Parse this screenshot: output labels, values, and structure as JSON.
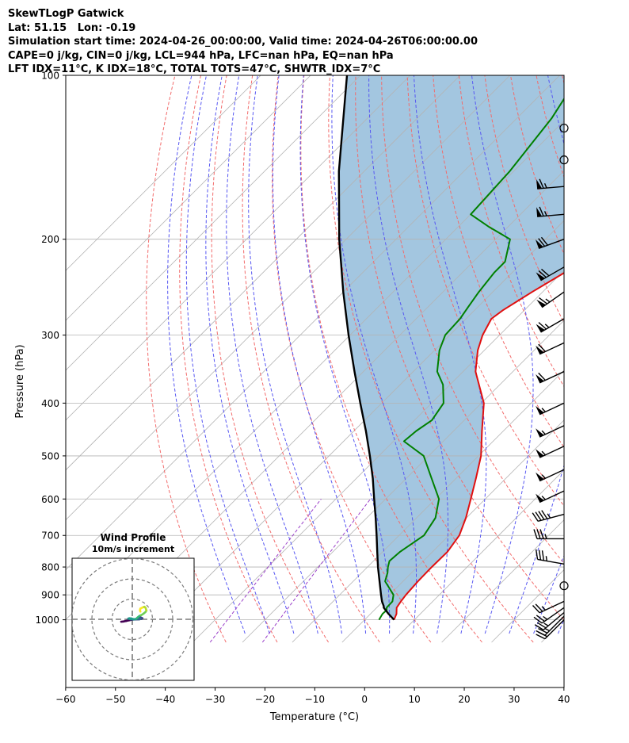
{
  "header": {
    "line1": "SkewTLogP Gatwick",
    "line2": "Lat: 51.15   Lon: -0.19",
    "line3": "Simulation start time: 2024-04-26_00:00:00, Valid time: 2024-04-26T06:00:00.00",
    "line4": "CAPE=0 j/kg, CIN=0 j/kg, LCL=944 hPa, LFC=nan hPa, EQ=nan hPa",
    "line5": "LFT IDX=11°C, K IDX=18°C, TOTAL TOTS=47°C, SHWTR_IDX=7°C"
  },
  "chart_data": {
    "type": "line",
    "xlabel": "Temperature (°C)",
    "ylabel": "Pressure (hPa)",
    "xlim": [
      -60,
      40
    ],
    "ylim": [
      1050,
      100
    ],
    "y_scale": "log",
    "x_ticks": [
      "−60",
      "−50",
      "−40",
      "−30",
      "−20",
      "−10",
      "0",
      "10",
      "20",
      "30",
      "40"
    ],
    "x_tick_values": [
      -60,
      -50,
      -40,
      -30,
      -20,
      -10,
      0,
      10,
      20,
      30,
      40
    ],
    "y_ticks": [
      "100",
      "200",
      "300",
      "400",
      "500",
      "600",
      "700",
      "800",
      "900",
      "1000"
    ],
    "y_tick_values": [
      100,
      200,
      300,
      400,
      500,
      600,
      700,
      800,
      900,
      1000
    ],
    "skew": 45,
    "grid": true,
    "colors": {
      "temperature": "#e01010",
      "dewpoint": "#008000",
      "parcel": "#000000",
      "fill": "#a3c6e0",
      "dry_adiabat": "#f26b6b",
      "moist_adiabat": "#5757f2",
      "mixing_ratio": "#9a3fc9",
      "isotherm": "#b3b3b3"
    },
    "series": [
      {
        "key": "temperature",
        "pressure": [
          1000,
          975,
          950,
          925,
          900,
          850,
          800,
          750,
          700,
          650,
          600,
          550,
          500,
          450,
          400,
          350,
          320,
          300,
          280,
          270,
          250,
          220,
          200,
          180,
          150,
          120,
          100
        ],
        "temperature": [
          5.9,
          5.2,
          4.0,
          3.6,
          3.3,
          3.0,
          2.9,
          3.0,
          2.1,
          -0.1,
          -2.9,
          -6.0,
          -9.5,
          -14.3,
          -19.5,
          -27.5,
          -31.3,
          -33.4,
          -34.9,
          -34.3,
          -32.1,
          -28.0,
          -25.8,
          -26.7,
          -29.4,
          -34.7,
          -38.4
        ]
      },
      {
        "key": "dewpoint",
        "pressure": [
          1000,
          990,
          975,
          960,
          950,
          925,
          900,
          870,
          850,
          820,
          800,
          780,
          750,
          700,
          650,
          600,
          550,
          500,
          470,
          450,
          430,
          400,
          370,
          350,
          320,
          300,
          280,
          265,
          250,
          230,
          220,
          200,
          190,
          180,
          150,
          120,
          100
        ],
        "temperature": [
          2.9,
          2.7,
          2.4,
          2.5,
          2.0,
          1.9,
          0.8,
          -1.8,
          -3.6,
          -4.8,
          -5.9,
          -6.8,
          -6.5,
          -5.0,
          -6.2,
          -9.3,
          -14.9,
          -21.0,
          -27.9,
          -27.5,
          -26.5,
          -27.6,
          -31.4,
          -35.2,
          -39.0,
          -40.9,
          -41.2,
          -42.0,
          -42.8,
          -43.6,
          -43.6,
          -47.1,
          -53.7,
          -60.0,
          -60.8,
          -63.0,
          -66.1
        ]
      },
      {
        "key": "parcel",
        "pressure": [
          1000,
          975,
          950,
          944,
          925,
          900,
          850,
          800,
          750,
          700,
          650,
          600,
          550,
          500,
          450,
          400,
          350,
          300,
          250,
          200,
          150,
          100
        ],
        "temperature": [
          5.9,
          3.6,
          1.4,
          1.1,
          -0.2,
          -1.7,
          -4.7,
          -7.9,
          -11.1,
          -14.5,
          -18.2,
          -22.3,
          -26.7,
          -31.8,
          -37.6,
          -44.3,
          -51.8,
          -60.3,
          -70.0,
          -81.4,
          -95.1,
          -112.7
        ]
      }
    ],
    "wind_barbs": [
      {
        "p": 125,
        "calm": true
      },
      {
        "p": 143,
        "calm": true
      },
      {
        "p": 160,
        "dir": 265,
        "knots": 65
      },
      {
        "p": 180,
        "dir": 265,
        "knots": 65
      },
      {
        "p": 200,
        "dir": 250,
        "knots": 70
      },
      {
        "p": 225,
        "dir": 240,
        "knots": 70
      },
      {
        "p": 250,
        "dir": 235,
        "knots": 65
      },
      {
        "p": 280,
        "dir": 240,
        "knots": 65
      },
      {
        "p": 310,
        "dir": 245,
        "knots": 60
      },
      {
        "p": 350,
        "dir": 245,
        "knots": 60
      },
      {
        "p": 400,
        "dir": 245,
        "knots": 55
      },
      {
        "p": 440,
        "dir": 245,
        "knots": 55
      },
      {
        "p": 480,
        "dir": 245,
        "knots": 55
      },
      {
        "p": 530,
        "dir": 245,
        "knots": 55
      },
      {
        "p": 580,
        "dir": 245,
        "knots": 55
      },
      {
        "p": 640,
        "dir": 255,
        "knots": 45
      },
      {
        "p": 710,
        "dir": 270,
        "knots": 35
      },
      {
        "p": 790,
        "dir": 280,
        "knots": 35
      },
      {
        "p": 866,
        "calm": true
      },
      {
        "p": 925,
        "dir": 245,
        "knots": 25
      },
      {
        "p": 950,
        "dir": 235,
        "knots": 25
      },
      {
        "p": 970,
        "dir": 230,
        "knots": 25
      },
      {
        "p": 985,
        "dir": 225,
        "knots": 25
      },
      {
        "p": 1000,
        "dir": 225,
        "knots": 20
      }
    ],
    "inset": {
      "type": "hodograph",
      "title": "Wind Profile",
      "subtitle": "10m/s increment",
      "ring_increment": 10,
      "rings": 3,
      "u": [
        -5.5,
        -4.5,
        -3.0,
        -1.5,
        0.0,
        1.5,
        3.0,
        4.5,
        5.0,
        4.2,
        3.5,
        3.8,
        4.0,
        3.5,
        2.5,
        2.0,
        1.5,
        0.5,
        -1.0,
        -2.0,
        -1.5,
        -0.5,
        0.5,
        1.0,
        2.0,
        2.5,
        3.0,
        3.5,
        4.2,
        5.0,
        5.8,
        6.5,
        7.0,
        6.8,
        6.5,
        6.0,
        5.0,
        4.0,
        3.8,
        4.0
      ],
      "v": [
        -1.2,
        -1.1,
        -0.8,
        -0.5,
        -0.2,
        -0.1,
        0.0,
        0.2,
        0.5,
        0.9,
        1.3,
        0.7,
        0.2,
        0.0,
        0.0,
        0.2,
        0.0,
        -0.1,
        0.0,
        0.3,
        0.5,
        0.4,
        0.1,
        0.0,
        0.3,
        0.8,
        1.2,
        1.6,
        2.0,
        2.4,
        3.0,
        3.6,
        4.3,
        5.0,
        5.8,
        6.2,
        5.8,
        5.3,
        4.5,
        3.8
      ]
    }
  }
}
